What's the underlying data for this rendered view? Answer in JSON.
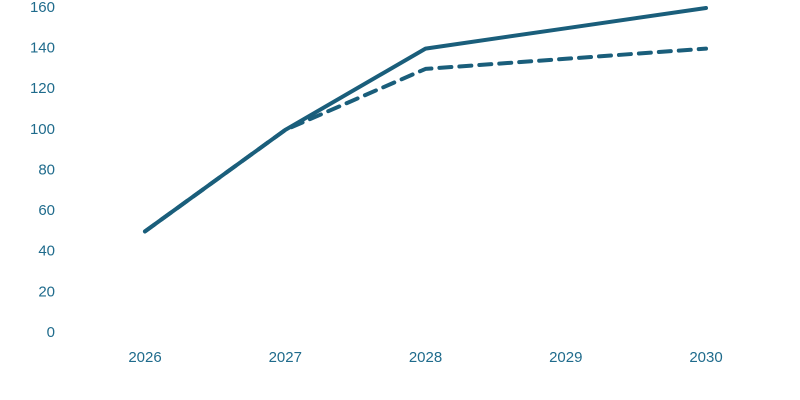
{
  "chart_data": {
    "type": "line",
    "title": "",
    "xlabel": "",
    "ylabel": "",
    "x": [
      "2026",
      "2027",
      "2028",
      "2029",
      "2030"
    ],
    "y_ticks": [
      "0",
      "20",
      "40",
      "60",
      "80",
      "100",
      "120",
      "140",
      "160"
    ],
    "ylim": [
      0,
      160
    ],
    "grid": false,
    "legend": "none",
    "series": [
      {
        "values": [
          50,
          100,
          140,
          150,
          160
        ],
        "style": "solid",
        "color": "#1a5e7b"
      },
      {
        "values": [
          50,
          100,
          130,
          135,
          140
        ],
        "style": "dashed",
        "color": "#1a5e7b"
      }
    ]
  }
}
